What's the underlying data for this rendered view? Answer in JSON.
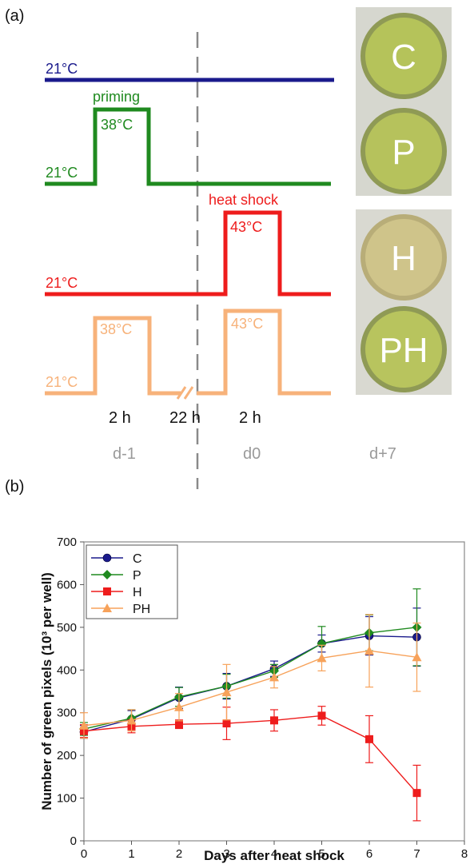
{
  "panel_a": {
    "letter": "(a)",
    "rows": [
      {
        "id": "C",
        "color": "#1a1a8c",
        "base_label": "21°C"
      },
      {
        "id": "P",
        "color": "#1f8a1f",
        "base_label": "21°C",
        "pulse1_label": "38°C",
        "title": "priming"
      },
      {
        "id": "H",
        "color": "#ee1c1c",
        "base_label": "21°C",
        "pulse2_label": "43°C",
        "title": "heat shock"
      },
      {
        "id": "PH",
        "color": "#f7b27a",
        "base_label": "21°C",
        "pulse1_label": "38°C",
        "pulse2_label": "43°C"
      }
    ],
    "durations": [
      "2 h",
      "22 h",
      "2 h"
    ],
    "days": [
      "d-1",
      "d0",
      "d+7"
    ],
    "wells": [
      {
        "label": "C",
        "color": "#b5c35a"
      },
      {
        "label": "P",
        "color": "#b6c25c"
      },
      {
        "label": "H",
        "color": "#cfc48a"
      },
      {
        "label": "PH",
        "color": "#b8c45e"
      }
    ]
  },
  "panel_b": {
    "letter": "(b)",
    "chart_data": {
      "type": "line",
      "xlabel": "Days after heat shock",
      "ylabel": "Number of green pixels (10³ per well)",
      "xlim": [
        0,
        8
      ],
      "ylim": [
        0,
        700
      ],
      "xticks": [
        0,
        1,
        2,
        3,
        4,
        5,
        6,
        7,
        8
      ],
      "yticks": [
        0,
        100,
        200,
        300,
        400,
        500,
        600,
        700
      ],
      "legend_position": "top-left",
      "grid": false,
      "x": [
        0,
        1,
        2,
        3,
        4,
        5,
        6,
        7
      ],
      "series": [
        {
          "name": "C",
          "color": "#1a1a8c",
          "marker": "circle",
          "values": [
            255,
            285,
            335,
            362,
            403,
            462,
            480,
            477
          ],
          "errors": [
            15,
            20,
            25,
            30,
            18,
            20,
            45,
            68
          ]
        },
        {
          "name": "P",
          "color": "#1f8a1f",
          "marker": "diamond",
          "values": [
            262,
            287,
            337,
            362,
            398,
            462,
            487,
            500
          ],
          "errors": [
            15,
            20,
            22,
            28,
            15,
            40,
            42,
            90
          ]
        },
        {
          "name": "H",
          "color": "#ee1c1c",
          "marker": "square",
          "values": [
            257,
            268,
            273,
            275,
            282,
            293,
            238,
            112
          ],
          "errors": [
            15,
            15,
            10,
            38,
            25,
            22,
            55,
            65
          ]
        },
        {
          "name": "PH",
          "color": "#f7a25a",
          "marker": "triangle",
          "values": [
            270,
            282,
            313,
            348,
            383,
            428,
            445,
            430
          ],
          "errors": [
            30,
            25,
            32,
            65,
            25,
            30,
            85,
            80
          ]
        }
      ]
    }
  }
}
